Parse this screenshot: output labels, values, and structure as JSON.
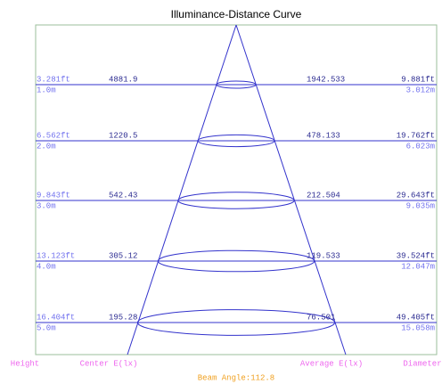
{
  "title": "Illuminance-Distance Curve",
  "rows": [
    {
      "height_ft": "3.281ft",
      "height_m": "1.0m",
      "center": "4881.9",
      "average": "1942.533",
      "diameter_ft": "9.881ft",
      "diameter_m": "3.012m"
    },
    {
      "height_ft": "6.562ft",
      "height_m": "2.0m",
      "center": "1220.5",
      "average": "478.133",
      "diameter_ft": "19.762ft",
      "diameter_m": "6.023m"
    },
    {
      "height_ft": "9.843ft",
      "height_m": "3.0m",
      "center": "542.43",
      "average": "212.504",
      "diameter_ft": "29.643ft",
      "diameter_m": "9.035m"
    },
    {
      "height_ft": "13.123ft",
      "height_m": "4.0m",
      "center": "305.12",
      "average": "119.533",
      "diameter_ft": "39.524ft",
      "diameter_m": "12.047m"
    },
    {
      "height_ft": "16.404ft",
      "height_m": "5.0m",
      "center": "195.28",
      "average": "76.501",
      "diameter_ft": "49.405ft",
      "diameter_m": "15.058m"
    }
  ],
  "footer": {
    "height": "Height",
    "center": "Center E(lx)",
    "average": "Average E(lx)",
    "diameter": "Diameter",
    "beam_angle": "Beam Angle:112.8"
  }
}
